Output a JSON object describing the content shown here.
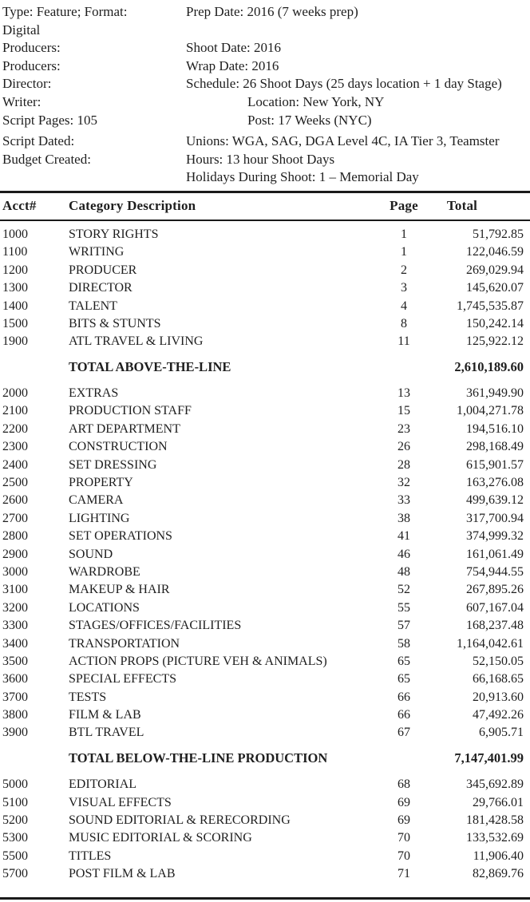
{
  "colors": {
    "background": "#ffffff",
    "text": "#1e1e1e",
    "rule": "#1a1a1a"
  },
  "info": {
    "rows": [
      {
        "left": "Type: Feature; Format:",
        "right": "Prep Date: 2016 (7 weeks prep)"
      },
      {
        "left": "Digital",
        "right": ""
      },
      {
        "left": "Producers:",
        "right": "Shoot Date: 2016"
      },
      {
        "left": "Producers:",
        "right": "Wrap Date: 2016"
      },
      {
        "left": "Director:",
        "right": "Schedule: 26 Shoot Days (25 days location + 1 day Stage)"
      },
      {
        "left": "Writer:",
        "right": "Location: New York, NY"
      },
      {
        "left": "Script Pages: 105",
        "right": "Post: 17 Weeks (NYC)"
      },
      {
        "left": "Script Dated:",
        "right": "Unions: WGA, SAG, DGA Level 4C, IA Tier 3, Teamster"
      },
      {
        "left": "Budget Created:",
        "right": "Hours: 13 hour Shoot Days"
      },
      {
        "left": "",
        "right": "Holidays During Shoot: 1 – Memorial Day"
      }
    ]
  },
  "table": {
    "headers": {
      "acct": "Acct#",
      "desc": "Category Description",
      "page": "Page",
      "total": "Total"
    },
    "rows": [
      {
        "acct": "1000",
        "desc": "STORY RIGHTS",
        "page": "1",
        "total": "51,792.85"
      },
      {
        "acct": "1100",
        "desc": "WRITING",
        "page": "1",
        "total": "122,046.59"
      },
      {
        "acct": "1200",
        "desc": "PRODUCER",
        "page": "2",
        "total": "269,029.94"
      },
      {
        "acct": "1300",
        "desc": "DIRECTOR",
        "page": "3",
        "total": "145,620.07"
      },
      {
        "acct": "1400",
        "desc": "TALENT",
        "page": "4",
        "total": "1,745,535.87"
      },
      {
        "acct": "1500",
        "desc": "BITS & STUNTS",
        "page": "8",
        "total": "150,242.14"
      },
      {
        "acct": "1900",
        "desc": "ATL TRAVEL & LIVING",
        "page": "11",
        "total": "125,922.12"
      },
      {
        "total_row": true,
        "desc": "TOTAL ABOVE-THE-LINE",
        "total": "2,610,189.60"
      },
      {
        "acct": "2000",
        "desc": "EXTRAS",
        "page": "13",
        "total": "361,949.90"
      },
      {
        "acct": "2100",
        "desc": "PRODUCTION STAFF",
        "page": "15",
        "total": "1,004,271.78"
      },
      {
        "acct": "2200",
        "desc": "ART DEPARTMENT",
        "page": "23",
        "total": "194,516.10"
      },
      {
        "acct": "2300",
        "desc": "CONSTRUCTION",
        "page": "26",
        "total": "298,168.49"
      },
      {
        "acct": "2400",
        "desc": "SET DRESSING",
        "page": "28",
        "total": "615,901.57"
      },
      {
        "acct": "2500",
        "desc": "PROPERTY",
        "page": "32",
        "total": "163,276.08"
      },
      {
        "acct": "2600",
        "desc": "CAMERA",
        "page": "33",
        "total": "499,639.12"
      },
      {
        "acct": "2700",
        "desc": "LIGHTING",
        "page": "38",
        "total": "317,700.94"
      },
      {
        "acct": "2800",
        "desc": "SET OPERATIONS",
        "page": "41",
        "total": "374,999.32"
      },
      {
        "acct": "2900",
        "desc": "SOUND",
        "page": "46",
        "total": "161,061.49"
      },
      {
        "acct": "3000",
        "desc": "WARDROBE",
        "page": "48",
        "total": "754,944.55"
      },
      {
        "acct": "3100",
        "desc": "MAKEUP & HAIR",
        "page": "52",
        "total": "267,895.26"
      },
      {
        "acct": "3200",
        "desc": "LOCATIONS",
        "page": "55",
        "total": "607,167.04"
      },
      {
        "acct": "3300",
        "desc": "STAGES/OFFICES/FACILITIES",
        "page": "57",
        "total": "168,237.48"
      },
      {
        "acct": "3400",
        "desc": "TRANSPORTATION",
        "page": "58",
        "total": "1,164,042.61"
      },
      {
        "acct": "3500",
        "desc": "ACTION PROPS (PICTURE VEH & ANIMALS)",
        "page": "65",
        "total": "52,150.05"
      },
      {
        "acct": "3600",
        "desc": "SPECIAL EFFECTS",
        "page": "65",
        "total": "66,168.65"
      },
      {
        "acct": "3700",
        "desc": "TESTS",
        "page": "66",
        "total": "20,913.60"
      },
      {
        "acct": "3800",
        "desc": "FILM & LAB",
        "page": "66",
        "total": "47,492.26"
      },
      {
        "acct": "3900",
        "desc": "BTL TRAVEL",
        "page": "67",
        "total": "6,905.71"
      },
      {
        "total_row": true,
        "desc": "TOTAL BELOW-THE-LINE PRODUCTION",
        "total": "7,147,401.99"
      },
      {
        "acct": "5000",
        "desc": "EDITORIAL",
        "page": "68",
        "total": "345,692.89"
      },
      {
        "acct": "5100",
        "desc": "VISUAL EFFECTS",
        "page": "69",
        "total": "29,766.01"
      },
      {
        "acct": "5200",
        "desc": "SOUND EDITORIAL & RERECORDING",
        "page": "69",
        "total": "181,428.58"
      },
      {
        "acct": "5300",
        "desc": "MUSIC EDITORIAL & SCORING",
        "page": "70",
        "total": "133,532.69"
      },
      {
        "acct": "5500",
        "desc": "TITLES",
        "page": "70",
        "total": "11,906.40"
      },
      {
        "acct": "5700",
        "desc": "POST FILM & LAB",
        "page": "71",
        "total": "82,869.76"
      }
    ]
  }
}
